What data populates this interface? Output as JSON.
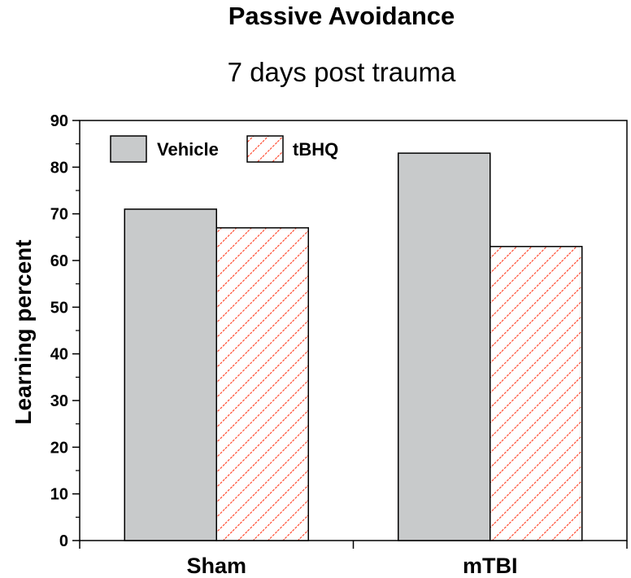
{
  "chart_data": {
    "type": "bar",
    "title": "Passive Avoidance",
    "subtitle": "7 days post trauma",
    "xlabel": "",
    "ylabel": "Learning percent",
    "categories": [
      "Sham",
      "mTBI"
    ],
    "series": [
      {
        "name": "Vehicle",
        "values": [
          71,
          83
        ],
        "color": "#c8cacb",
        "pattern": "solid"
      },
      {
        "name": "tBHQ",
        "values": [
          67,
          63
        ],
        "color": "#ff3b1f",
        "pattern": "diagonal-hatch"
      }
    ],
    "ylim": [
      0,
      90
    ],
    "yticks": [
      0,
      10,
      20,
      30,
      40,
      50,
      60,
      70,
      80,
      90
    ],
    "legend_position": "top-left",
    "grid": false
  }
}
